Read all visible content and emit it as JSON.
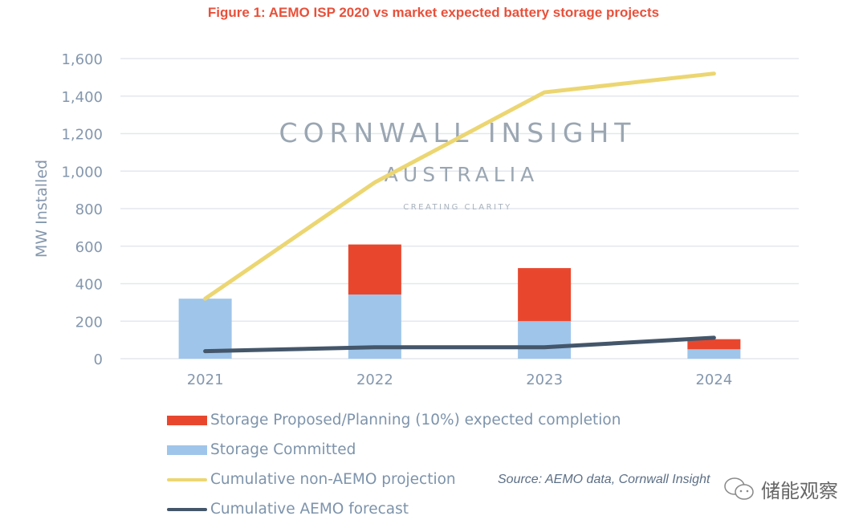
{
  "chart_data": {
    "type": "bar",
    "title": "Figure 1: AEMO ISP 2020 vs market expected battery storage projects",
    "xlabel": "",
    "ylabel": "MW Installed",
    "ylim": [
      0,
      1600
    ],
    "yticks": [
      0,
      200,
      400,
      600,
      800,
      1000,
      1200,
      1400,
      1600
    ],
    "ytick_labels": [
      "0",
      "200",
      "400",
      "600",
      "800",
      "1,000",
      "1,200",
      "1,400",
      "1,600"
    ],
    "grid": true,
    "stacked": true,
    "categories": [
      "2021",
      "2022",
      "2023",
      "2024"
    ],
    "series": [
      {
        "name": "Storage Committed",
        "kind": "bar",
        "color": "#9fc5ea",
        "values": [
          320,
          342,
          200,
          50
        ]
      },
      {
        "name": "Storage Proposed/Planning (10%) expected completion",
        "kind": "bar",
        "color": "#e8472e",
        "values": [
          0,
          267,
          283,
          54
        ]
      },
      {
        "name": "Cumulative non-AEMO projection",
        "kind": "line",
        "color": "#ecd672",
        "values": [
          320,
          940,
          1420,
          1520
        ]
      },
      {
        "name": "Cumulative AEMO forecast",
        "kind": "line",
        "color": "#44566a",
        "values": [
          40,
          61,
          61,
          112
        ]
      }
    ],
    "legend_order": [
      "Storage Proposed/Planning (10%) expected completion",
      "Storage Committed",
      "Cumulative non-AEMO projection",
      "Cumulative AEMO forecast"
    ],
    "legend_placement": "bottom-left",
    "watermark": {
      "line1": "CORNWALL INSIGHT",
      "line2": "AUSTRALIA",
      "line3": "CREATING CLARITY"
    },
    "source": "Source: AEMO data, Cornwall Insight"
  },
  "colors": {
    "title": "#e8503a",
    "axis_text": "#8497ad",
    "grid": "#e3e7ee"
  },
  "overlay": {
    "wechat_label": "储能观察",
    "icon": "wechat-icon"
  }
}
